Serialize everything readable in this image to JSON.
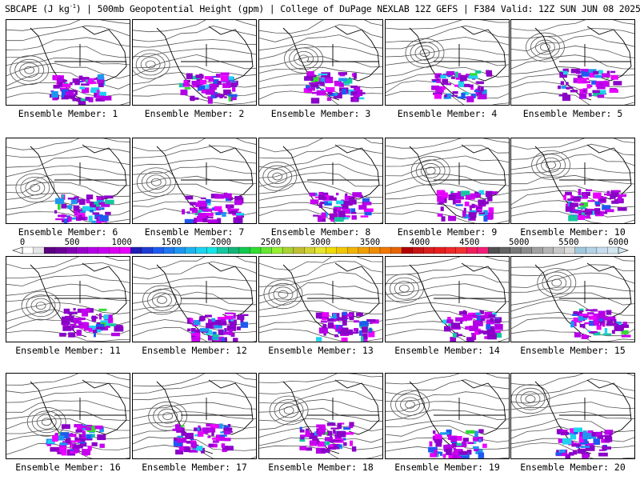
{
  "header": {
    "title_pre": "SBCAPE (J kg",
    "title_sup": "-1",
    "title_post": ") | 500mb Geopotential Height (gpm) | College of DuPage NEXLAB 12Z GEFS | F384 Valid: 12Z SUN JUN 08 2025"
  },
  "colorbar": {
    "ticks": [
      "0",
      "500",
      "1000",
      "1500",
      "2000",
      "2500",
      "3000",
      "3500",
      "4000",
      "4500",
      "5000",
      "5500",
      "6000"
    ],
    "colors": [
      "#ffffff",
      "#e6e6e6",
      "#5a0080",
      "#6a0096",
      "#8200b4",
      "#9a00cc",
      "#b400e6",
      "#c800f0",
      "#dc00f5",
      "#ea00ff",
      "#1e1eb4",
      "#1e3cd2",
      "#1e5af0",
      "#1e78f0",
      "#1e96f0",
      "#1eb4f0",
      "#1ed2f0",
      "#14e6e6",
      "#14c8a0",
      "#14b478",
      "#14c850",
      "#32dc32",
      "#64e632",
      "#96f032",
      "#aad232",
      "#bebe32",
      "#d2d232",
      "#e6e632",
      "#f0dc00",
      "#f0c800",
      "#f0b400",
      "#f0a000",
      "#f08c00",
      "#f07800",
      "#e66400",
      "#b40000",
      "#c81414",
      "#dc1e1e",
      "#e61e1e",
      "#f02828",
      "#f03232",
      "#f01e5a",
      "#f01e78",
      "#505050",
      "#646464",
      "#787878",
      "#8c8c8c",
      "#a0a0a0",
      "#b4b4b4",
      "#c8c8c8",
      "#dcdcdc",
      "#a0c8dc",
      "#b4d2e6",
      "#c8dcf0",
      "#d2e6f0"
    ]
  },
  "panels": [
    {
      "label": "Ensemble Member: 1"
    },
    {
      "label": "Ensemble Member: 2"
    },
    {
      "label": "Ensemble Member: 3"
    },
    {
      "label": "Ensemble Member: 4"
    },
    {
      "label": "Ensemble Member: 5"
    },
    {
      "label": "Ensemble Member: 6"
    },
    {
      "label": "Ensemble Member: 7"
    },
    {
      "label": "Ensemble Member: 8"
    },
    {
      "label": "Ensemble Member: 9"
    },
    {
      "label": "Ensemble Member: 10"
    },
    {
      "label": "Ensemble Member: 11"
    },
    {
      "label": "Ensemble Member: 12"
    },
    {
      "label": "Ensemble Member: 13"
    },
    {
      "label": "Ensemble Member: 14"
    },
    {
      "label": "Ensemble Member: 15"
    },
    {
      "label": "Ensemble Member: 16"
    },
    {
      "label": "Ensemble Member: 17"
    },
    {
      "label": "Ensemble Member: 18"
    },
    {
      "label": "Ensemble Member: 19"
    },
    {
      "label": "Ensemble Member: 20"
    }
  ]
}
